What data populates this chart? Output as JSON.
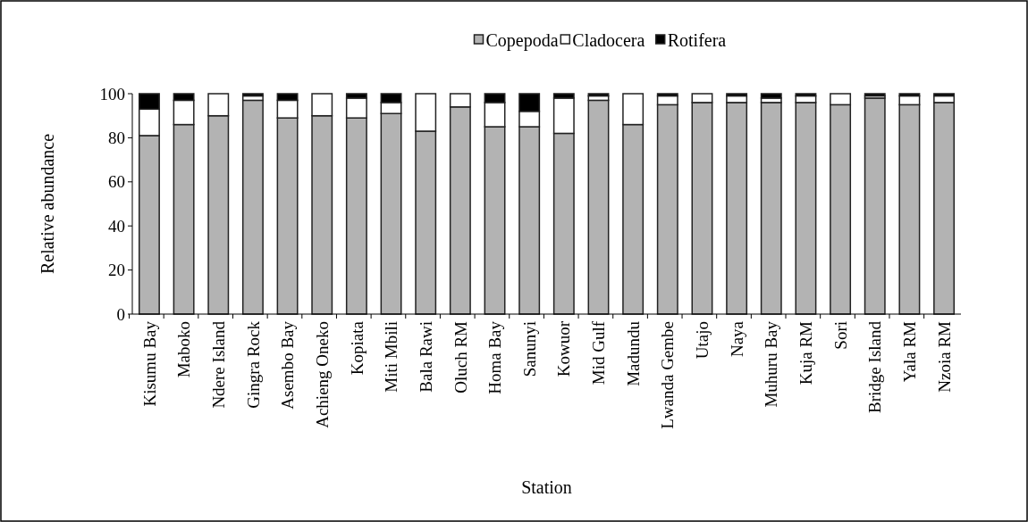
{
  "chart_data": {
    "type": "bar",
    "stacked": true,
    "xlabel": "Station",
    "ylabel": "Relative abundance",
    "legend": "top",
    "ylim": [
      0,
      100
    ],
    "yticks": [
      0,
      20,
      40,
      60,
      80,
      100
    ],
    "grid": false,
    "categories": [
      "Kisumu Bay",
      "Maboko",
      "Ndere Island",
      "Gingra Rock",
      "Asembo Bay",
      "Achieng Oneko",
      "Kopiata",
      "Miti Mbili",
      "Bala Rawi",
      "Oluch RM",
      "Homa Bay",
      "Sanunyi",
      "Kowuor",
      "Mid Gulf",
      "Madundu",
      "Lwanda Gembe",
      "Utajo",
      "Naya",
      "Muhuru Bay",
      "Kuja RM",
      "Sori",
      "Bridge Island",
      "Yala RM",
      "Nzoia RM"
    ],
    "series": [
      {
        "name": "Copepoda",
        "color": "#b3b3b3",
        "values": [
          81,
          86,
          90,
          97,
          89,
          90,
          89,
          91,
          83,
          94,
          85,
          85,
          82,
          97,
          86,
          95,
          96,
          96,
          96,
          96,
          95,
          98,
          95,
          96
        ]
      },
      {
        "name": "Cladocera",
        "color": "#ffffff",
        "values": [
          12,
          11,
          10,
          2,
          8,
          10,
          9,
          5,
          17,
          6,
          11,
          7,
          16,
          2,
          14,
          4,
          4,
          3,
          2,
          3,
          5,
          1,
          4,
          3
        ]
      },
      {
        "name": "Rotifera",
        "color": "#000000",
        "values": [
          7,
          3,
          0,
          1,
          3,
          0,
          2,
          4,
          0,
          0,
          4,
          8,
          2,
          1,
          0,
          1,
          0,
          1,
          2,
          1,
          0,
          1,
          1,
          1
        ]
      }
    ]
  }
}
